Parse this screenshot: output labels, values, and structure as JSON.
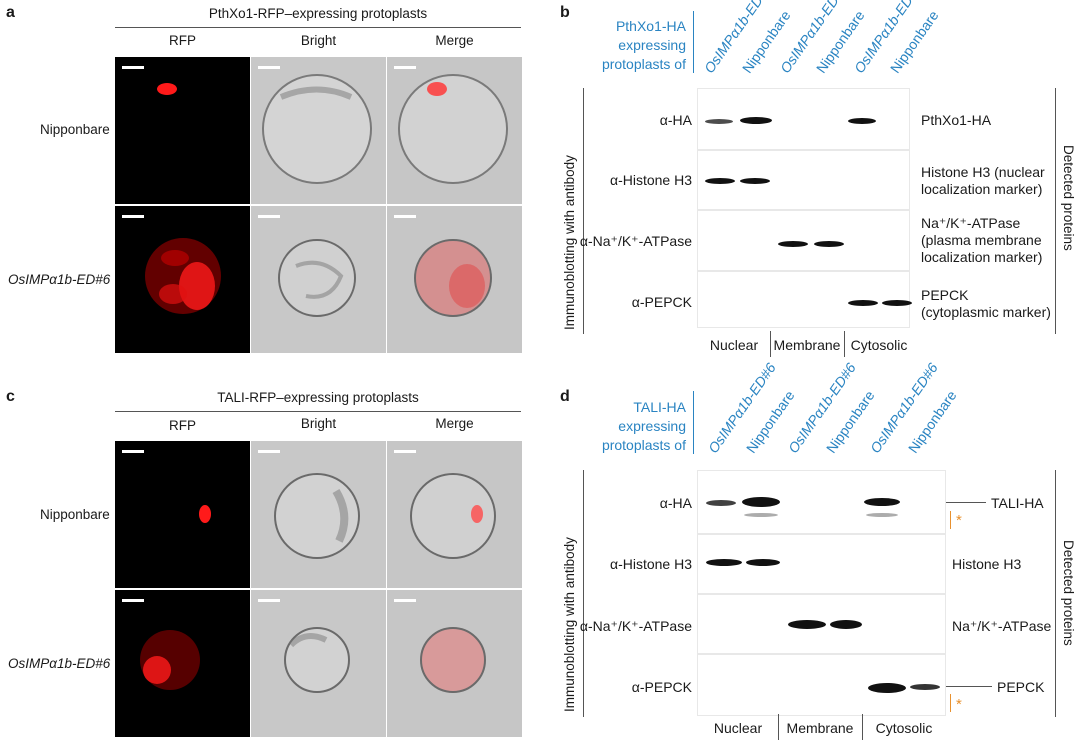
{
  "panel_a": {
    "label": "a",
    "title": "PthXo1-RFP–expressing protoplasts",
    "columns": [
      "RFP",
      "Bright",
      "Merge"
    ],
    "rows": [
      "Nipponbare",
      "OsIMPα1b-ED#6"
    ]
  },
  "panel_b": {
    "label": "b",
    "header": [
      "PthXo1-HA",
      "expressing",
      "protoplasts of"
    ],
    "lanes": [
      "OsIMPα1b-ED#6",
      "Nipponbare",
      "OsIMPα1b-ED#6",
      "Nipponbare",
      "OsIMPα1b-ED#6",
      "Nipponbare"
    ],
    "side_label": "Immunoblotting with antibody",
    "antibodies": [
      "α-HA",
      "α-Histone H3",
      "α-Na⁺/K⁺-ATPase",
      "α-PEPCK"
    ],
    "detected": [
      [
        "PthXo1-HA"
      ],
      [
        "Histone H3 (nuclear",
        "localization marker)"
      ],
      [
        "Na⁺/K⁺-ATPase",
        "(plasma membrane",
        "localization marker)"
      ],
      [
        "PEPCK",
        "(cytoplasmic marker)"
      ]
    ],
    "detected_label": "Detected proteins",
    "fractions": [
      "Nuclear",
      "Membrane",
      "Cytosolic"
    ]
  },
  "panel_c": {
    "label": "c",
    "title": "TALI-RFP–expressing protoplasts",
    "columns": [
      "RFP",
      "Bright",
      "Merge"
    ],
    "rows": [
      "Nipponbare",
      "OsIMPα1b-ED#6"
    ]
  },
  "panel_d": {
    "label": "d",
    "header": [
      "TALI-HA",
      "expressing",
      "protoplasts of"
    ],
    "lanes": [
      "OsIMPα1b-ED#6",
      "Nipponbare",
      "OsIMPα1b-ED#6",
      "Nipponbare",
      "OsIMPα1b-ED#6",
      "Nipponbare"
    ],
    "side_label": "Immunoblotting with antibody",
    "antibodies": [
      "α-HA",
      "α-Histone H3",
      "α-Na⁺/K⁺-ATPase",
      "α-PEPCK"
    ],
    "detected": [
      [
        "TALI-HA"
      ],
      [
        "Histone H3"
      ],
      [
        "Na⁺/K⁺-ATPase"
      ],
      [
        "PEPCK"
      ]
    ],
    "detected_label": "Detected proteins",
    "fractions": [
      "Nuclear",
      "Membrane",
      "Cytosolic"
    ],
    "asterisk": "*"
  },
  "colors": {
    "blue": "#2a84c2",
    "rfp": "#ff1a1a",
    "asterisk": "#e8912f"
  }
}
